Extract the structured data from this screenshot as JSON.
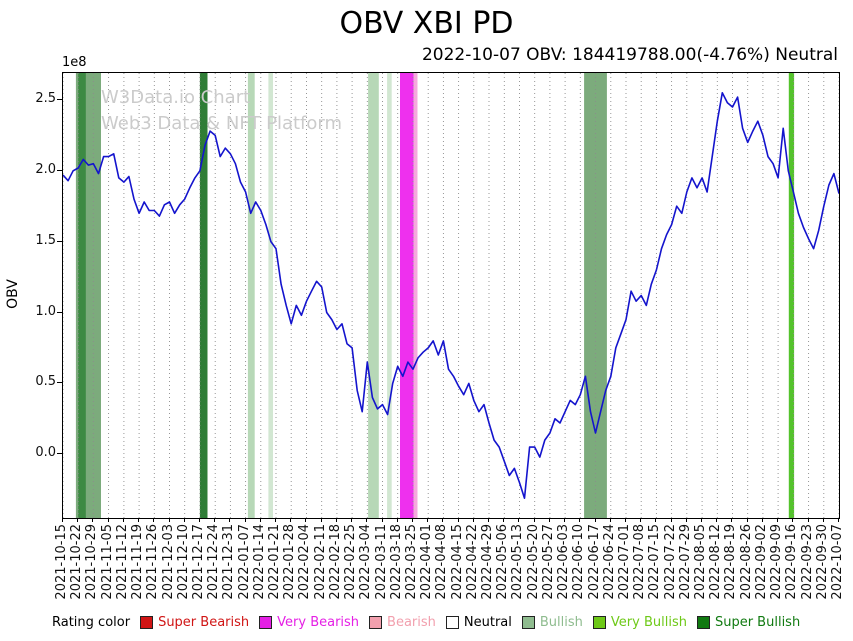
{
  "title": "OBV XBI PD",
  "subtitle": "2022-10-07 OBV: 184419788.00(-4.76%) Neutral",
  "watermark": {
    "line1": "W3Data.io Chart",
    "line2": "Web3 Data & NFT Platform"
  },
  "y_axis": {
    "label": "OBV",
    "offset_text": "1e8",
    "ticks": [
      "0.0",
      "0.5",
      "1.0",
      "1.5",
      "2.0",
      "2.5"
    ]
  },
  "legend": {
    "title": "Rating color",
    "items": [
      {
        "label": "Super Bearish",
        "swatch": "#d01515",
        "text_color": "#d01515"
      },
      {
        "label": "Very Bearish",
        "swatch": "#e520e5",
        "text_color": "#e520e5"
      },
      {
        "label": "Bearish",
        "swatch": "#f2a0ae",
        "text_color": "#f2a0ae"
      },
      {
        "label": "Neutral",
        "swatch": "#ffffff",
        "text_color": "#000000"
      },
      {
        "label": "Bullish",
        "swatch": "#8fbc8f",
        "text_color": "#8fbc8f"
      },
      {
        "label": "Very Bullish",
        "swatch": "#6ec918",
        "text_color": "#6ec918"
      },
      {
        "label": "Super Bullish",
        "swatch": "#117a11",
        "text_color": "#117a11"
      }
    ]
  },
  "chart_data": {
    "type": "line",
    "title": "OBV XBI PD",
    "series_name": "OBV",
    "line_color": "#1414cd",
    "scale": 100000000,
    "units": "1e8",
    "ylim": [
      -0.45,
      2.69
    ],
    "grid": "vertical-dotted",
    "points_per_week": 3,
    "categories": [
      "2021-10-15",
      "2021-10-22",
      "2021-10-29",
      "2021-11-05",
      "2021-11-12",
      "2021-11-19",
      "2021-11-26",
      "2021-12-03",
      "2021-12-10",
      "2021-12-17",
      "2021-12-24",
      "2021-12-31",
      "2022-01-07",
      "2022-01-14",
      "2022-01-21",
      "2022-01-28",
      "2022-02-04",
      "2022-02-11",
      "2022-02-18",
      "2022-02-25",
      "2022-03-04",
      "2022-03-11",
      "2022-03-18",
      "2022-03-25",
      "2022-04-01",
      "2022-04-08",
      "2022-04-15",
      "2022-04-22",
      "2022-04-29",
      "2022-05-06",
      "2022-05-13",
      "2022-05-20",
      "2022-05-27",
      "2022-06-03",
      "2022-06-10",
      "2022-06-17",
      "2022-06-24",
      "2022-07-01",
      "2022-07-08",
      "2022-07-15",
      "2022-07-22",
      "2022-07-29",
      "2022-08-05",
      "2022-08-12",
      "2022-08-19",
      "2022-08-26",
      "2022-09-02",
      "2022-09-09",
      "2022-09-16",
      "2022-09-23",
      "2022-09-30",
      "2022-10-07"
    ],
    "values": [
      1.97,
      1.93,
      2.0,
      2.02,
      2.08,
      2.04,
      2.05,
      1.98,
      2.1,
      2.1,
      2.12,
      1.95,
      1.92,
      1.96,
      1.8,
      1.7,
      1.78,
      1.72,
      1.72,
      1.68,
      1.76,
      1.78,
      1.7,
      1.76,
      1.8,
      1.88,
      1.95,
      2.0,
      2.18,
      2.28,
      2.25,
      2.1,
      2.16,
      2.12,
      2.05,
      1.92,
      1.85,
      1.7,
      1.78,
      1.72,
      1.62,
      1.5,
      1.45,
      1.2,
      1.05,
      0.92,
      1.05,
      0.98,
      1.08,
      1.15,
      1.22,
      1.18,
      1.0,
      0.95,
      0.88,
      0.92,
      0.78,
      0.75,
      0.45,
      0.3,
      0.65,
      0.4,
      0.32,
      0.35,
      0.28,
      0.5,
      0.62,
      0.55,
      0.65,
      0.6,
      0.68,
      0.72,
      0.75,
      0.8,
      0.7,
      0.8,
      0.6,
      0.55,
      0.48,
      0.42,
      0.5,
      0.38,
      0.3,
      0.35,
      0.22,
      0.1,
      0.05,
      -0.05,
      -0.15,
      -0.1,
      -0.2,
      -0.31,
      0.05,
      0.05,
      -0.02,
      0.1,
      0.15,
      0.25,
      0.22,
      0.3,
      0.38,
      0.35,
      0.42,
      0.55,
      0.3,
      0.15,
      0.3,
      0.45,
      0.55,
      0.75,
      0.85,
      0.95,
      1.15,
      1.08,
      1.12,
      1.05,
      1.2,
      1.3,
      1.45,
      1.55,
      1.62,
      1.75,
      1.7,
      1.85,
      1.95,
      1.88,
      1.95,
      1.85,
      2.1,
      2.35,
      2.55,
      2.48,
      2.45,
      2.52,
      2.3,
      2.2,
      2.28,
      2.35,
      2.25,
      2.1,
      2.05,
      1.95,
      2.3,
      2.0,
      1.85,
      1.7,
      1.6,
      1.52,
      1.45,
      1.58,
      1.75,
      1.9,
      1.98,
      1.84
    ],
    "bands": [
      {
        "from": 0.85,
        "to": 2.5,
        "color": "#7cab7c",
        "rating": "Bullish"
      },
      {
        "from": 1.0,
        "to": 1.5,
        "color": "#3d8a43",
        "rating": "Super Bullish"
      },
      {
        "from": 9.0,
        "to": 9.5,
        "color": "#2f7d36",
        "rating": "Super Bullish"
      },
      {
        "from": 12.15,
        "to": 12.6,
        "color": "#b7d8b7",
        "rating": "Bullish"
      },
      {
        "from": 13.5,
        "to": 13.8,
        "color": "#d2e7d2",
        "rating": "Bullish"
      },
      {
        "from": 20.05,
        "to": 20.75,
        "color": "#b7d8b7",
        "rating": "Bullish"
      },
      {
        "from": 21.3,
        "to": 21.6,
        "color": "#d2e7d2",
        "rating": "Bullish"
      },
      {
        "from": 22.15,
        "to": 23.05,
        "color": "#ee30ee",
        "rating": "Very Bearish"
      },
      {
        "from": 23.05,
        "to": 23.3,
        "color": "#f6a8dd",
        "rating": "Bearish"
      },
      {
        "from": 34.25,
        "to": 35.75,
        "color": "#7cab7c",
        "rating": "Bullish"
      },
      {
        "from": 47.7,
        "to": 48.05,
        "color": "#54c32c",
        "rating": "Very Bullish"
      }
    ]
  }
}
